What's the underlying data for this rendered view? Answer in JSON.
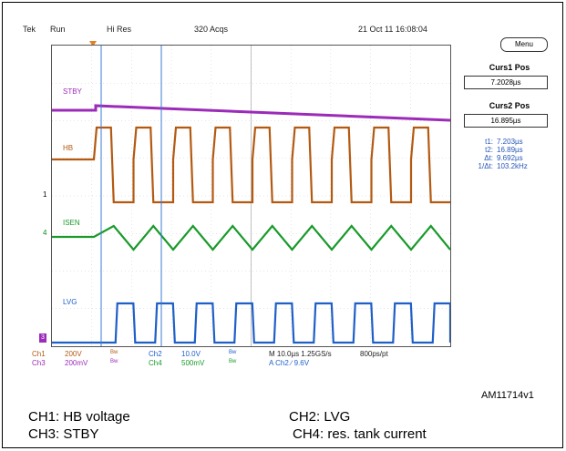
{
  "scope": {
    "brand": "Tek",
    "state": "Run",
    "mode": "Hi Res",
    "acqs": "320 Acqs",
    "datetime": "21 Oct 11 16:08:04"
  },
  "channels": {
    "stby": "STBY",
    "hb": "HB",
    "isen": "ISEN",
    "lvg": "LVG"
  },
  "refs": {
    "ch1": "1",
    "ch4": "4",
    "gnd": "3"
  },
  "colors": {
    "stby": "#9b2bb8",
    "hb": "#b35a12",
    "isen": "#1a9a2a",
    "lvg": "#1f5fc8",
    "cursor": "#3a7bd5",
    "trigger": "#e67e22"
  },
  "side": {
    "menu": "Menu",
    "curs1_title": "Curs1 Pos",
    "curs1_value": "7.2028µs",
    "curs2_title": "Curs2 Pos",
    "curs2_value": "16.895µs",
    "readout": [
      {
        "k": "t1:",
        "v": "7.203µs"
      },
      {
        "k": "t2:",
        "v": "16.89µs"
      },
      {
        "k": "Δt:",
        "v": "9.692µs"
      },
      {
        "k": "1/Δt:",
        "v": "103.2kHz"
      }
    ]
  },
  "settings": {
    "ch1": "Ch1",
    "ch1_scale": "200V",
    "ch1_bw": "Bw",
    "ch2": "Ch2",
    "ch2_scale": "10.0V",
    "ch2_bw": "Bw",
    "ch3": "Ch3",
    "ch3_scale": "200mV",
    "ch3_bw": "Bw",
    "ch4": "Ch4",
    "ch4_scale": "500mV",
    "ch4_bw": "Bw",
    "timebase": "M 10.0µs 1.25GS/s",
    "resolution": "800ps/pt",
    "trigger": "A  Ch2  ∕  9.6V"
  },
  "figure_id": "AM11714v1",
  "captions": {
    "ch1": "CH1: HB voltage",
    "ch2": "CH2: LVG",
    "ch3": "CH3: STBY",
    "ch4": "CH4: res. tank current"
  }
}
